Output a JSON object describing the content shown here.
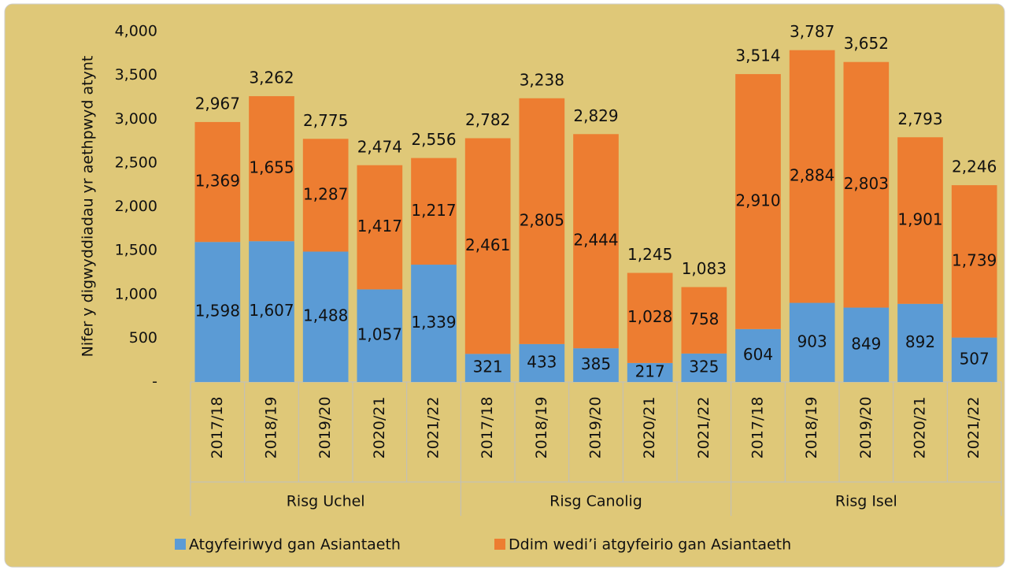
{
  "chart_data": {
    "type": "stacked-bar",
    "y_label": "Nifer y digwyddiadau yr aethpwyd atynt",
    "groups": [
      "Risg Uchel",
      "Risg Canolig",
      "Risg Isel"
    ],
    "categories": [
      "2017/18",
      "2018/19",
      "2019/20",
      "2020/21",
      "2021/22",
      "2017/18",
      "2018/19",
      "2019/20",
      "2020/21",
      "2021/22",
      "2017/18",
      "2018/19",
      "2019/20",
      "2020/21",
      "2021/22"
    ],
    "series": [
      {
        "name": "Atgyfeiriwyd gan Asiantaeth",
        "color": "#5b9bd5",
        "values": [
          1598,
          1607,
          1488,
          1057,
          1339,
          321,
          433,
          385,
          217,
          325,
          604,
          903,
          849,
          892,
          507
        ],
        "value_labels": [
          "1,598",
          "1,607",
          "1,488",
          "1,057",
          "1,339",
          "321",
          "433",
          "385",
          "217",
          "325",
          "604",
          "903",
          "849",
          "892",
          "507"
        ]
      },
      {
        "name": "Ddim wedi’i atgyfeirio gan Asiantaeth",
        "color": "#ed7d31",
        "values": [
          1369,
          1655,
          1287,
          1417,
          1217,
          2461,
          2805,
          2444,
          1028,
          758,
          2910,
          2884,
          2803,
          1901,
          1739
        ],
        "value_labels": [
          "1,369",
          "1,655",
          "1,287",
          "1,417",
          "1,217",
          "2,461",
          "2,805",
          "2,444",
          "1,028",
          "758",
          "2,910",
          "2,884",
          "2,803",
          "1,901",
          "1,739"
        ]
      }
    ],
    "totals": [
      2967,
      3262,
      2775,
      2474,
      2556,
      2782,
      3238,
      2829,
      1245,
      1083,
      3514,
      3787,
      3652,
      2793,
      2246
    ],
    "total_labels": [
      "2,967",
      "3,262",
      "2,775",
      "2,474",
      "2,556",
      "2,782",
      "3,238",
      "2,829",
      "1,245",
      "1,083",
      "3,514",
      "3,787",
      "3,652",
      "2,793",
      "2,246"
    ],
    "ylim": [
      0,
      4000
    ],
    "yticks": [
      {
        "value": 0,
        "label": "-"
      },
      500,
      {
        "value": 1000,
        "label": "1,000"
      },
      {
        "value": 1500,
        "label": "1,500"
      },
      {
        "value": 2000,
        "label": "2,000"
      },
      {
        "value": 2500,
        "label": "2,500"
      },
      {
        "value": 3000,
        "label": "3,000"
      },
      {
        "value": 3500,
        "label": "3,500"
      },
      {
        "value": 4000,
        "label": "4,000"
      }
    ],
    "grid": false
  }
}
